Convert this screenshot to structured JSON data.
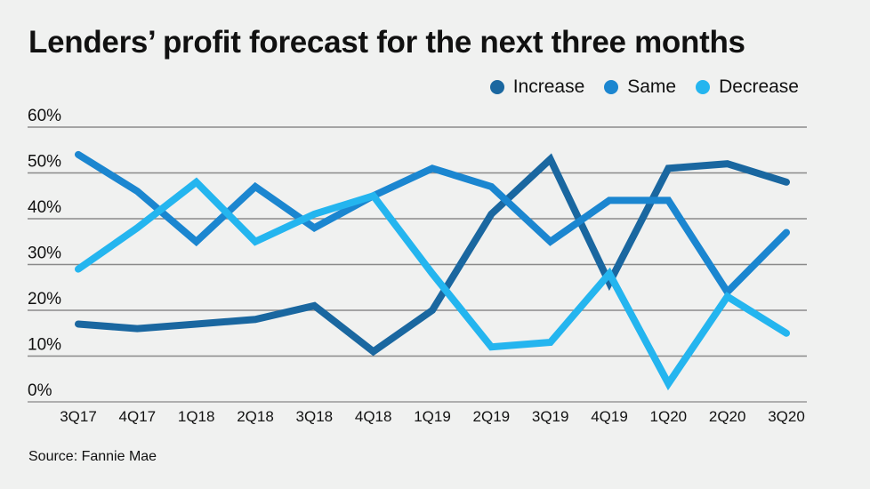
{
  "chart_data": {
    "type": "line",
    "title": "Lenders’ profit forecast for the next three months",
    "source": "Source: Fannie Mae",
    "categories": [
      "3Q17",
      "4Q17",
      "1Q18",
      "2Q18",
      "3Q18",
      "4Q18",
      "1Q19",
      "2Q19",
      "3Q19",
      "4Q19",
      "1Q20",
      "2Q20",
      "3Q20"
    ],
    "yticks": [
      "0%",
      "10%",
      "20%",
      "30%",
      "40%",
      "50%",
      "60%"
    ],
    "ylim": [
      0,
      60
    ],
    "grid": true,
    "legend_position": "top-right",
    "series": [
      {
        "name": "Increase",
        "color": "#1a67a0",
        "values": [
          17,
          16,
          17,
          18,
          21,
          11,
          20,
          41,
          53,
          26,
          51,
          52,
          48
        ]
      },
      {
        "name": "Same",
        "color": "#1b86d0",
        "values": [
          54,
          46,
          35,
          47,
          38,
          45,
          51,
          47,
          35,
          44,
          44,
          24,
          37
        ]
      },
      {
        "name": "Decrease",
        "color": "#24b5ef",
        "values": [
          29,
          38,
          48,
          35,
          41,
          45,
          28,
          12,
          13,
          28,
          4,
          23,
          15
        ]
      }
    ]
  }
}
